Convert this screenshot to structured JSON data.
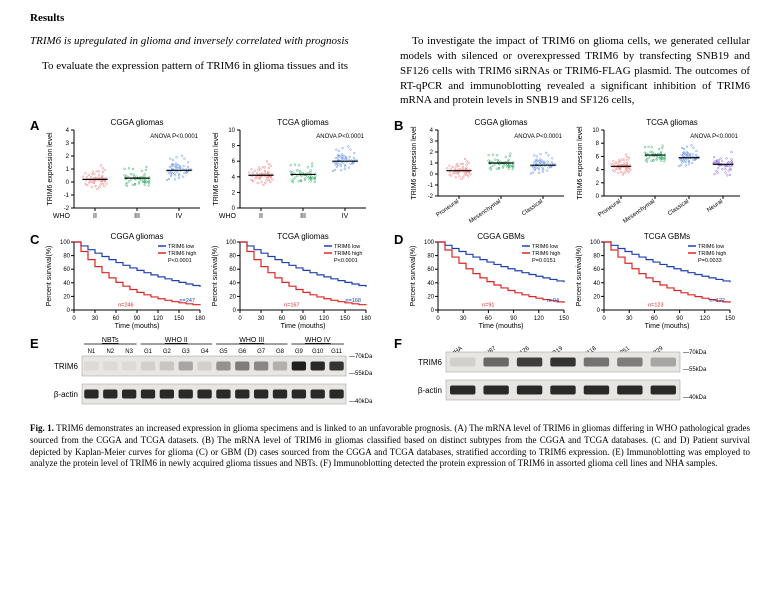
{
  "header": {
    "results": "Results"
  },
  "subheading": "TRIM6 is upregulated in glioma and inversely correlated with prognosis",
  "para1": "To evaluate the expression pattern of TRIM6 in glioma tissues and its",
  "para2": "To investigate the impact of TRIM6 on glioma cells, we generated cellular models with silenced or overexpressed TRIM6 by transfecting SNB19 and SF126 cells with TRIM6 siRNAs or TRIM6-FLAG plasmid. The outcomes of RT-qPCR and immunoblotting revealed a significant inhibition of TRIM6 mRNA and protein levels in SNB19 and SF126 cells,",
  "panelA": {
    "chart1": {
      "title": "CGGA gliomas",
      "anova": "ANOVA P<0.0001",
      "ylabel": "TRIM6 expression level",
      "ymin": -2,
      "ymax": 4,
      "yticks": [
        -2,
        -1,
        0,
        1,
        2,
        3,
        4
      ],
      "xlabel": "WHO",
      "categories": [
        "II",
        "III",
        "IV"
      ],
      "colors": [
        "#f08080",
        "#3cb371",
        "#6495ed"
      ],
      "medians": [
        0.2,
        0.3,
        0.9
      ]
    },
    "chart2": {
      "title": "TCGA gliomas",
      "anova": "ANOVA P<0.0001",
      "ylabel": "TRIM6 expression level",
      "ymin": 0,
      "ymax": 10,
      "yticks": [
        0,
        2,
        4,
        6,
        8,
        10
      ],
      "xlabel": "WHO",
      "categories": [
        "II",
        "III",
        "IV"
      ],
      "colors": [
        "#f08080",
        "#3cb371",
        "#6495ed"
      ],
      "medians": [
        4.2,
        4.3,
        6.0
      ]
    }
  },
  "panelB": {
    "chart1": {
      "title": "CGGA gliomas",
      "anova": "ANOVA P<0.0001",
      "ylabel": "TRIM6 expression level",
      "ymin": -2,
      "ymax": 4,
      "yticks": [
        -2,
        -1,
        0,
        1,
        2,
        3,
        4
      ],
      "categories": [
        "Proneural",
        "Mesenchymal",
        "Classical"
      ],
      "colors": [
        "#f08080",
        "#3cb371",
        "#6495ed"
      ],
      "medians": [
        0.3,
        1.0,
        0.8
      ]
    },
    "chart2": {
      "title": "TCGA gliomas",
      "anova": "ANOVA P<0.0001",
      "ylabel": "TRIM6 expression level",
      "ymin": 0,
      "ymax": 10,
      "yticks": [
        0,
        2,
        4,
        6,
        8,
        10
      ],
      "categories": [
        "Proneural",
        "Mesenchymal",
        "Classical",
        "Neural"
      ],
      "colors": [
        "#f08080",
        "#3cb371",
        "#6495ed",
        "#9370db"
      ],
      "medians": [
        4.5,
        6.2,
        5.8,
        4.8
      ]
    }
  },
  "panelC": {
    "chart1": {
      "title": "CGGA gliomas",
      "ylabel": "Percent survival(%)",
      "xlabel": "Time (mouths)",
      "xmax": 180,
      "xticks": [
        0,
        30,
        60,
        90,
        120,
        150,
        180
      ],
      "legend": [
        "TRIM6 low",
        "TRIM6 high"
      ],
      "pvalue": "P<0.0001",
      "n_low": "n=247",
      "n_high": "n=246",
      "colors": {
        "low": "#1e40af",
        "high": "#dc2626"
      }
    },
    "chart2": {
      "title": "TCGA gliomas",
      "ylabel": "Percent survival(%)",
      "xlabel": "Time (mouths)",
      "xmax": 180,
      "xticks": [
        0,
        30,
        60,
        90,
        120,
        150,
        180
      ],
      "legend": [
        "TRIM6 low",
        "TRIM6 high"
      ],
      "pvalue": "P<0.0001",
      "n_low": "n=168",
      "n_high": "n=167",
      "colors": {
        "low": "#1e40af",
        "high": "#dc2626"
      }
    }
  },
  "panelD": {
    "chart1": {
      "title": "CGGA GBMs",
      "ylabel": "Percent survival(%)",
      "xlabel": "Time (mouths)",
      "xmax": 150,
      "xticks": [
        0,
        30,
        60,
        90,
        120,
        150
      ],
      "legend": [
        "TRIM6 low",
        "TRIM6 high"
      ],
      "pvalue": "P=0.0151",
      "n_low": "n=94",
      "n_high": "n=91",
      "colors": {
        "low": "#1e40af",
        "high": "#dc2626"
      }
    },
    "chart2": {
      "title": "TCGA GBMs",
      "ylabel": "Percent survival(%)",
      "xlabel": "Time (mouths)",
      "xmax": 150,
      "xticks": [
        0,
        30,
        60,
        90,
        120,
        150
      ],
      "legend": [
        "TRIM6 low",
        "TRIM6 high"
      ],
      "pvalue": "P=0.0033",
      "n_low": "n=122",
      "n_high": "n=123",
      "colors": {
        "low": "#1e40af",
        "high": "#dc2626"
      }
    }
  },
  "panelE": {
    "groups": [
      "NBTs",
      "WHO II",
      "WHO III",
      "WHO IV"
    ],
    "lanes": [
      "N1",
      "N2",
      "N3",
      "G1",
      "G2",
      "G3",
      "G4",
      "G5",
      "G6",
      "G7",
      "G8",
      "G9",
      "G10",
      "G11"
    ],
    "rows": [
      "TRIM6",
      "β-actin"
    ],
    "markers": [
      "70kDa",
      "55kDa",
      "40kDa"
    ],
    "trim6_intensity": [
      0.05,
      0.05,
      0.05,
      0.1,
      0.15,
      0.3,
      0.1,
      0.4,
      0.5,
      0.45,
      0.25,
      0.95,
      0.9,
      0.85
    ],
    "actin_intensity": [
      0.9,
      0.9,
      0.9,
      0.9,
      0.9,
      0.9,
      0.9,
      0.9,
      0.9,
      0.9,
      0.9,
      0.9,
      0.9,
      0.9
    ]
  },
  "panelF": {
    "lanes": [
      "NHA",
      "U87",
      "SF126",
      "SNB19",
      "U118",
      "U251",
      "LN229"
    ],
    "rows": [
      "TRIM6",
      "β-actin"
    ],
    "markers": [
      "70kDa",
      "55kDa",
      "40kDa"
    ],
    "trim6_intensity": [
      0.1,
      0.6,
      0.8,
      0.85,
      0.55,
      0.5,
      0.3
    ],
    "actin_intensity": [
      0.9,
      0.9,
      0.9,
      0.9,
      0.9,
      0.9,
      0.9
    ]
  },
  "caption_bold": "Fig. 1.",
  "caption": " TRIM6 demonstrates an increased expression in glioma specimens and is linked to an unfavorable prognosis. (A) The mRNA level of TRIM6 in gliomas differing in WHO pathological grades sourced from the CGGA and TCGA datasets. (B) The mRNA level of TRIM6 in gliomas classified based on distinct subtypes from the CGGA and TCGA databases. (C and D) Patient survival depicted by Kaplan-Meier curves for glioma (C) or GBM (D) cases sourced from the CGGA and TCGA databases, stratified according to TRIM6 expression. (E) Immunoblotting was employed to analyze the protein level of TRIM6 in newly acquired glioma tissues and NBTs. (F) Immunoblotting detected the protein expression of TRIM6 in assorted glioma cell lines and NHA samples."
}
